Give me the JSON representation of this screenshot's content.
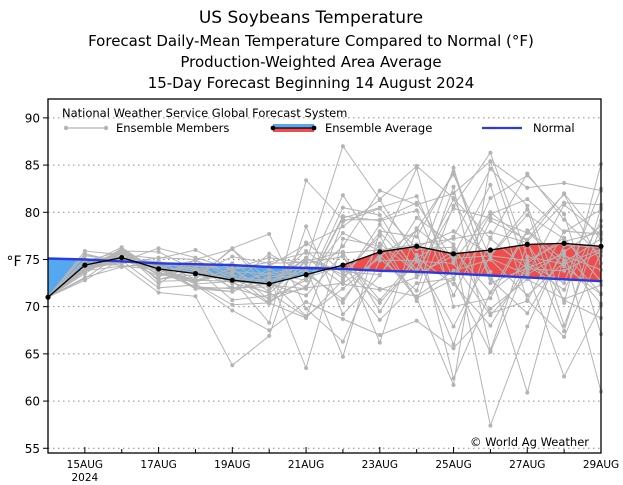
{
  "titles": [
    "US Soybeans Temperature",
    "Forecast Daily-Mean Temperature Compared to Normal (°F)",
    "Production-Weighted Area Average",
    "15-Day Forecast Beginning 14 August 2024"
  ],
  "legend": {
    "header": "National Weather Service Global Forecast System",
    "members_label": "Ensemble Members",
    "average_label": "Ensemble Average",
    "normal_label": "Normal"
  },
  "copyright": "© World Ag Weather",
  "colors": {
    "members": "#b4b4b4",
    "average": "#000000",
    "normal": "#2a3be0",
    "warm_fill": "#f24b4b",
    "cool_fill": "#55a8f0",
    "grid": "#8c8c8c"
  },
  "chart_data": {
    "type": "line",
    "ylabel": "°F",
    "xlabel": "",
    "ylim": [
      54.5,
      92
    ],
    "xlim": [
      0,
      15
    ],
    "yticks": [
      55,
      60,
      65,
      70,
      75,
      80,
      85,
      90
    ],
    "ytick_labels": [
      "55",
      "60",
      "65",
      "70",
      "75",
      "80",
      "85",
      "90"
    ],
    "xticks": [
      1,
      3,
      5,
      7,
      9,
      11,
      13,
      15
    ],
    "xtick_labels": [
      "15AUG",
      "17AUG",
      "19AUG",
      "21AUG",
      "23AUG",
      "25AUG",
      "27AUG",
      "29AUG"
    ],
    "xtick_sublabel": "2024",
    "x": [
      0,
      1,
      2,
      3,
      4,
      5,
      6,
      7,
      8,
      9,
      10,
      11,
      12,
      13,
      14,
      15
    ],
    "normal": [
      75.1,
      75.0,
      74.8,
      74.6,
      74.5,
      74.4,
      74.2,
      74.1,
      74.0,
      73.8,
      73.7,
      73.5,
      73.3,
      73.1,
      72.9,
      72.7
    ],
    "ensemble_average": [
      71.0,
      74.4,
      75.2,
      74.0,
      73.5,
      72.8,
      72.4,
      73.4,
      74.4,
      75.8,
      76.4,
      75.6,
      76.0,
      76.6,
      76.7,
      76.4
    ],
    "members": [
      [
        71.0,
        73.8,
        75.1,
        73.2,
        74.1,
        72.0,
        70.9,
        72.8,
        76.4,
        82.3,
        80.8,
        82.0,
        85.4,
        82.6,
        83.1,
        82.3
      ],
      [
        71.0,
        75.6,
        74.3,
        74.4,
        72.4,
        70.2,
        70.4,
        68.8,
        72.8,
        78.7,
        73.9,
        84.7,
        72.5,
        74.1,
        75.6,
        71.4
      ],
      [
        71.0,
        73.8,
        76.1,
        73.9,
        74.0,
        70.7,
        71.2,
        71.9,
        79.6,
        79.1,
        80.2,
        71.2,
        79.1,
        77.1,
        82.0,
        77.1
      ],
      [
        71.0,
        74.1,
        74.6,
        75.2,
        75.0,
        71.8,
        74.0,
        72.0,
        72.5,
        75.1,
        71.7,
        82.7,
        65.4,
        76.7,
        70.7,
        68.8
      ],
      [
        71.0,
        74.1,
        75.9,
        75.8,
        73.9,
        74.6,
        72.4,
        75.2,
        72.4,
        71.8,
        73.1,
        76.0,
        71.5,
        78.1,
        74.9,
        70.3
      ],
      [
        71.0,
        74.1,
        75.9,
        73.7,
        72.1,
        71.6,
        73.1,
        73.8,
        70.4,
        76.7,
        73.6,
        80.4,
        79.4,
        77.8,
        81.9,
        74.6
      ],
      [
        71.0,
        74.0,
        75.1,
        74.0,
        71.9,
        72.0,
        72.1,
        75.1,
        73.4,
        77.5,
        70.6,
        80.7,
        86.3,
        75.3,
        74.5,
        76.1
      ],
      [
        71.0,
        74.3,
        75.3,
        73.5,
        73.3,
        72.9,
        71.4,
        74.8,
        75.8,
        69.5,
        75.5,
        66.0,
        77.3,
        84.1,
        79.2,
        75.4
      ],
      [
        71.0,
        73.5,
        75.9,
        72.4,
        75.0,
        76.1,
        72.8,
        69.0,
        71.9,
        75.3,
        78.1,
        62.4,
        71.5,
        74.6,
        72.5,
        82.5
      ],
      [
        71.0,
        73.9,
        75.6,
        74.2,
        72.6,
        73.7,
        73.5,
        72.8,
        77.8,
        75.9,
        76.3,
        78.0,
        75.5,
        80.3,
        68.0,
        78.5
      ],
      [
        71.0,
        73.0,
        75.7,
        72.9,
        73.4,
        75.3,
        74.6,
        74.7,
        87.0,
        81.4,
        84.9,
        81.5,
        77.2,
        74.0,
        73.8,
        75.9
      ],
      [
        71.0,
        74.3,
        75.6,
        72.9,
        73.9,
        72.9,
        68.3,
        83.4,
        79.2,
        79.2,
        81.0,
        74.8,
        80.0,
        76.9,
        81.0,
        80.8
      ],
      [
        71.0,
        75.4,
        74.9,
        72.0,
        72.3,
        69.6,
        67.5,
        70.5,
        68.7,
        67.0,
        68.5,
        65.6,
        69.8,
        72.9,
        70.8,
        72.3
      ],
      [
        71.0,
        72.8,
        75.0,
        73.9,
        72.8,
        74.0,
        74.3,
        76.6,
        78.5,
        81.3,
        75.2,
        77.4,
        84.6,
        80.7,
        70.4,
        85.1
      ],
      [
        71.0,
        75.6,
        74.7,
        74.6,
        74.3,
        74.0,
        75.2,
        74.6,
        75.3,
        70.7,
        75.2,
        72.4,
        68.0,
        74.4,
        71.8,
        79.1
      ],
      [
        71.0,
        74.0,
        74.9,
        74.8,
        73.8,
        72.6,
        73.5,
        74.2,
        74.2,
        70.4,
        74.8,
        74.6,
        69.1,
        73.4,
        75.8,
        78.5
      ],
      [
        71.0,
        74.3,
        75.1,
        74.1,
        72.4,
        72.7,
        70.3,
        75.1,
        73.7,
        68.6,
        72.5,
        73.0,
        81.5,
        83.9,
        79.8,
        67.1
      ],
      [
        71.0,
        74.2,
        75.8,
        73.3,
        74.9,
        73.0,
        72.8,
        73.6,
        81.8,
        76.0,
        84.7,
        70.0,
        70.9,
        78.0,
        74.3,
        71.3
      ],
      [
        71.0,
        73.8,
        74.3,
        73.9,
        74.2,
        72.5,
        71.5,
        68.9,
        79.0,
        80.4,
        76.1,
        76.3,
        57.4,
        67.9,
        76.5,
        76.3
      ],
      [
        71.0,
        74.5,
        74.4,
        71.5,
        71.1,
        63.8,
        66.9,
        78.5,
        69.2,
        73.3,
        79.4,
        76.6,
        69.3,
        70.6,
        78.0,
        77.7
      ],
      [
        71.0,
        73.1,
        74.2,
        74.8,
        72.9,
        76.2,
        77.7,
        69.8,
        66.3,
        74.9,
        74.9,
        67.9,
        75.4,
        79.7,
        77.2,
        72.7
      ],
      [
        71.0,
        74.3,
        75.9,
        74.1,
        74.9,
        73.4,
        70.4,
        73.1,
        74.3,
        71.9,
        71.1,
        73.8,
        75.0,
        71.2,
        74.7,
        77.2
      ],
      [
        71.0,
        75.9,
        75.5,
        75.1,
        76.0,
        74.0,
        71.6,
        76.8,
        73.7,
        73.4,
        78.2,
        84.0,
        75.1,
        73.4,
        80.8,
        77.6
      ],
      [
        71.0,
        74.1,
        75.2,
        74.7,
        71.9,
        71.6,
        73.2,
        63.5,
        77.2,
        76.4,
        70.9,
        61.7,
        85.4,
        73.7,
        62.6,
        70.1
      ],
      [
        71.0,
        74.3,
        75.7,
        73.4,
        73.0,
        76.1,
        71.9,
        74.1,
        64.7,
        78.0,
        77.4,
        84.3,
        72.9,
        69.3,
        75.9,
        61.0
      ],
      [
        71.0,
        73.7,
        76.2,
        72.7,
        72.8,
        72.7,
        72.3,
        71.9,
        79.4,
        80.5,
        81.7,
        72.9,
        79.8,
        81.4,
        77.9,
        80.3
      ],
      [
        71.0,
        74.2,
        75.2,
        74.0,
        72.8,
        73.4,
        72.4,
        75.9,
        73.0,
        77.9,
        73.5,
        81.4,
        73.7,
        60.9,
        75.4,
        73.9
      ],
      [
        71.0,
        74.4,
        76.3,
        73.6,
        74.5,
        72.4,
        75.6,
        73.5,
        70.8,
        75.6,
        70.9,
        72.9,
        65.2,
        74.6,
        77.3,
        72.7
      ],
      [
        71.0,
        74.8,
        75.9,
        74.1,
        72.1,
        71.9,
        72.4,
        71.2,
        75.6,
        66.2,
        78.3,
        75.1,
        75.4,
        74.9,
        76.9,
        77.9
      ],
      [
        71.0,
        73.9,
        74.8,
        76.2,
        75.2,
        74.0,
        74.7,
        75.7,
        75.7,
        76.0,
        76.6,
        77.2,
        77.9,
        76.8,
        67.4,
        80.5
      ],
      [
        71.0,
        75.0,
        75.3,
        73.5,
        72.6,
        74.1,
        70.7,
        72.1,
        80.5,
        79.7,
        73.4,
        75.4,
        82.9,
        70.7,
        66.8,
        75.8
      ]
    ]
  }
}
